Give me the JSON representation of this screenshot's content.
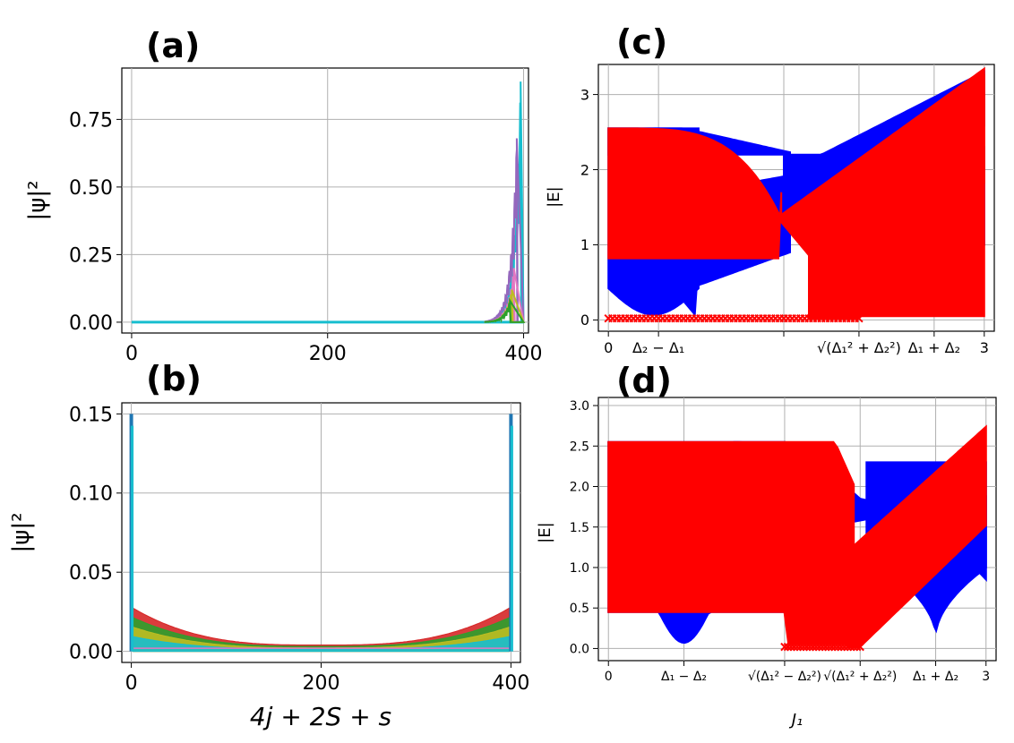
{
  "chart_data": [
    {
      "panel": "(a)",
      "type": "line",
      "ylabel": "|ψ|²",
      "xlabel": "",
      "xlim": [
        -10,
        405
      ],
      "ylim": [
        -0.04,
        0.94
      ],
      "xticks": [
        0,
        200,
        400
      ],
      "xtick_labels": [
        "0",
        "200",
        "400"
      ],
      "yticks": [
        0,
        0.25,
        0.5,
        0.75
      ],
      "ytick_labels": [
        "0.00",
        "0.25",
        "0.50",
        "0.75"
      ],
      "grid": true,
      "peaks": [
        {
          "x": 397,
          "y": 0.89,
          "color": "#17becf"
        },
        {
          "x": 393,
          "y": 0.68,
          "color": "#9467bd"
        },
        {
          "x": 390,
          "y": 0.2,
          "color": "#e377c2"
        },
        {
          "x": 388,
          "y": 0.12,
          "color": "#bcbd22"
        },
        {
          "x": 386,
          "y": 0.08,
          "color": "#2ca02c"
        }
      ]
    },
    {
      "panel": "(b)",
      "type": "line",
      "ylabel": "|ψ|²",
      "xlabel": "4j + 2S + s",
      "xlim": [
        -10,
        410
      ],
      "ylim": [
        -0.007,
        0.157
      ],
      "xticks": [
        0,
        200,
        400
      ],
      "xtick_labels": [
        "0",
        "200",
        "400"
      ],
      "yticks": [
        0,
        0.05,
        0.1,
        0.15
      ],
      "ytick_labels": [
        "0.00",
        "0.05",
        "0.10",
        "0.15"
      ],
      "grid": true,
      "edge_peak": 0.15,
      "bulk_edge": 0.028,
      "bulk_center": 0.004
    },
    {
      "panel": "(c)",
      "type": "scatter",
      "ylabel": "|E|",
      "xlabel": "",
      "xlim": [
        -0.08,
        3.08
      ],
      "ylim": [
        -0.15,
        3.4
      ],
      "xticks": [
        0,
        0.4,
        1.4,
        2.0,
        2.6,
        3.0
      ],
      "xtick_labels": [
        "0",
        "Δ₂ − Δ₁",
        "",
        "√(Δ₁² + Δ₂²)",
        "Δ₁ + Δ₂",
        "3"
      ],
      "yticks": [
        0,
        1,
        2,
        3
      ],
      "ytick_labels": [
        "0",
        "1",
        "2",
        "3"
      ],
      "grid": true,
      "series": [
        {
          "name": "blue bands",
          "color": "#0000ff"
        },
        {
          "name": "red bands",
          "color": "#ff0000"
        }
      ]
    },
    {
      "panel": "(d)",
      "type": "scatter",
      "ylabel": "|E|",
      "xlabel": "J₁",
      "xlim": [
        -0.08,
        3.08
      ],
      "ylim": [
        -0.15,
        3.1
      ],
      "xticks": [
        0,
        0.6,
        1.4,
        2.0,
        2.6,
        3.0
      ],
      "xtick_labels": [
        "0",
        "Δ₁ − Δ₂",
        "√(Δ₁² − Δ₂²)",
        "√(Δ₁² + Δ₂²)",
        "Δ₁ + Δ₂",
        "3"
      ],
      "yticks": [
        0,
        0.5,
        1,
        1.5,
        2,
        2.5,
        3
      ],
      "ytick_labels": [
        "0.0",
        "0.5",
        "1.0",
        "1.5",
        "2.0",
        "2.5",
        "3.0"
      ],
      "grid": true,
      "series": [
        {
          "name": "blue bands",
          "color": "#0000ff"
        },
        {
          "name": "red bands",
          "color": "#ff0000"
        }
      ]
    }
  ]
}
